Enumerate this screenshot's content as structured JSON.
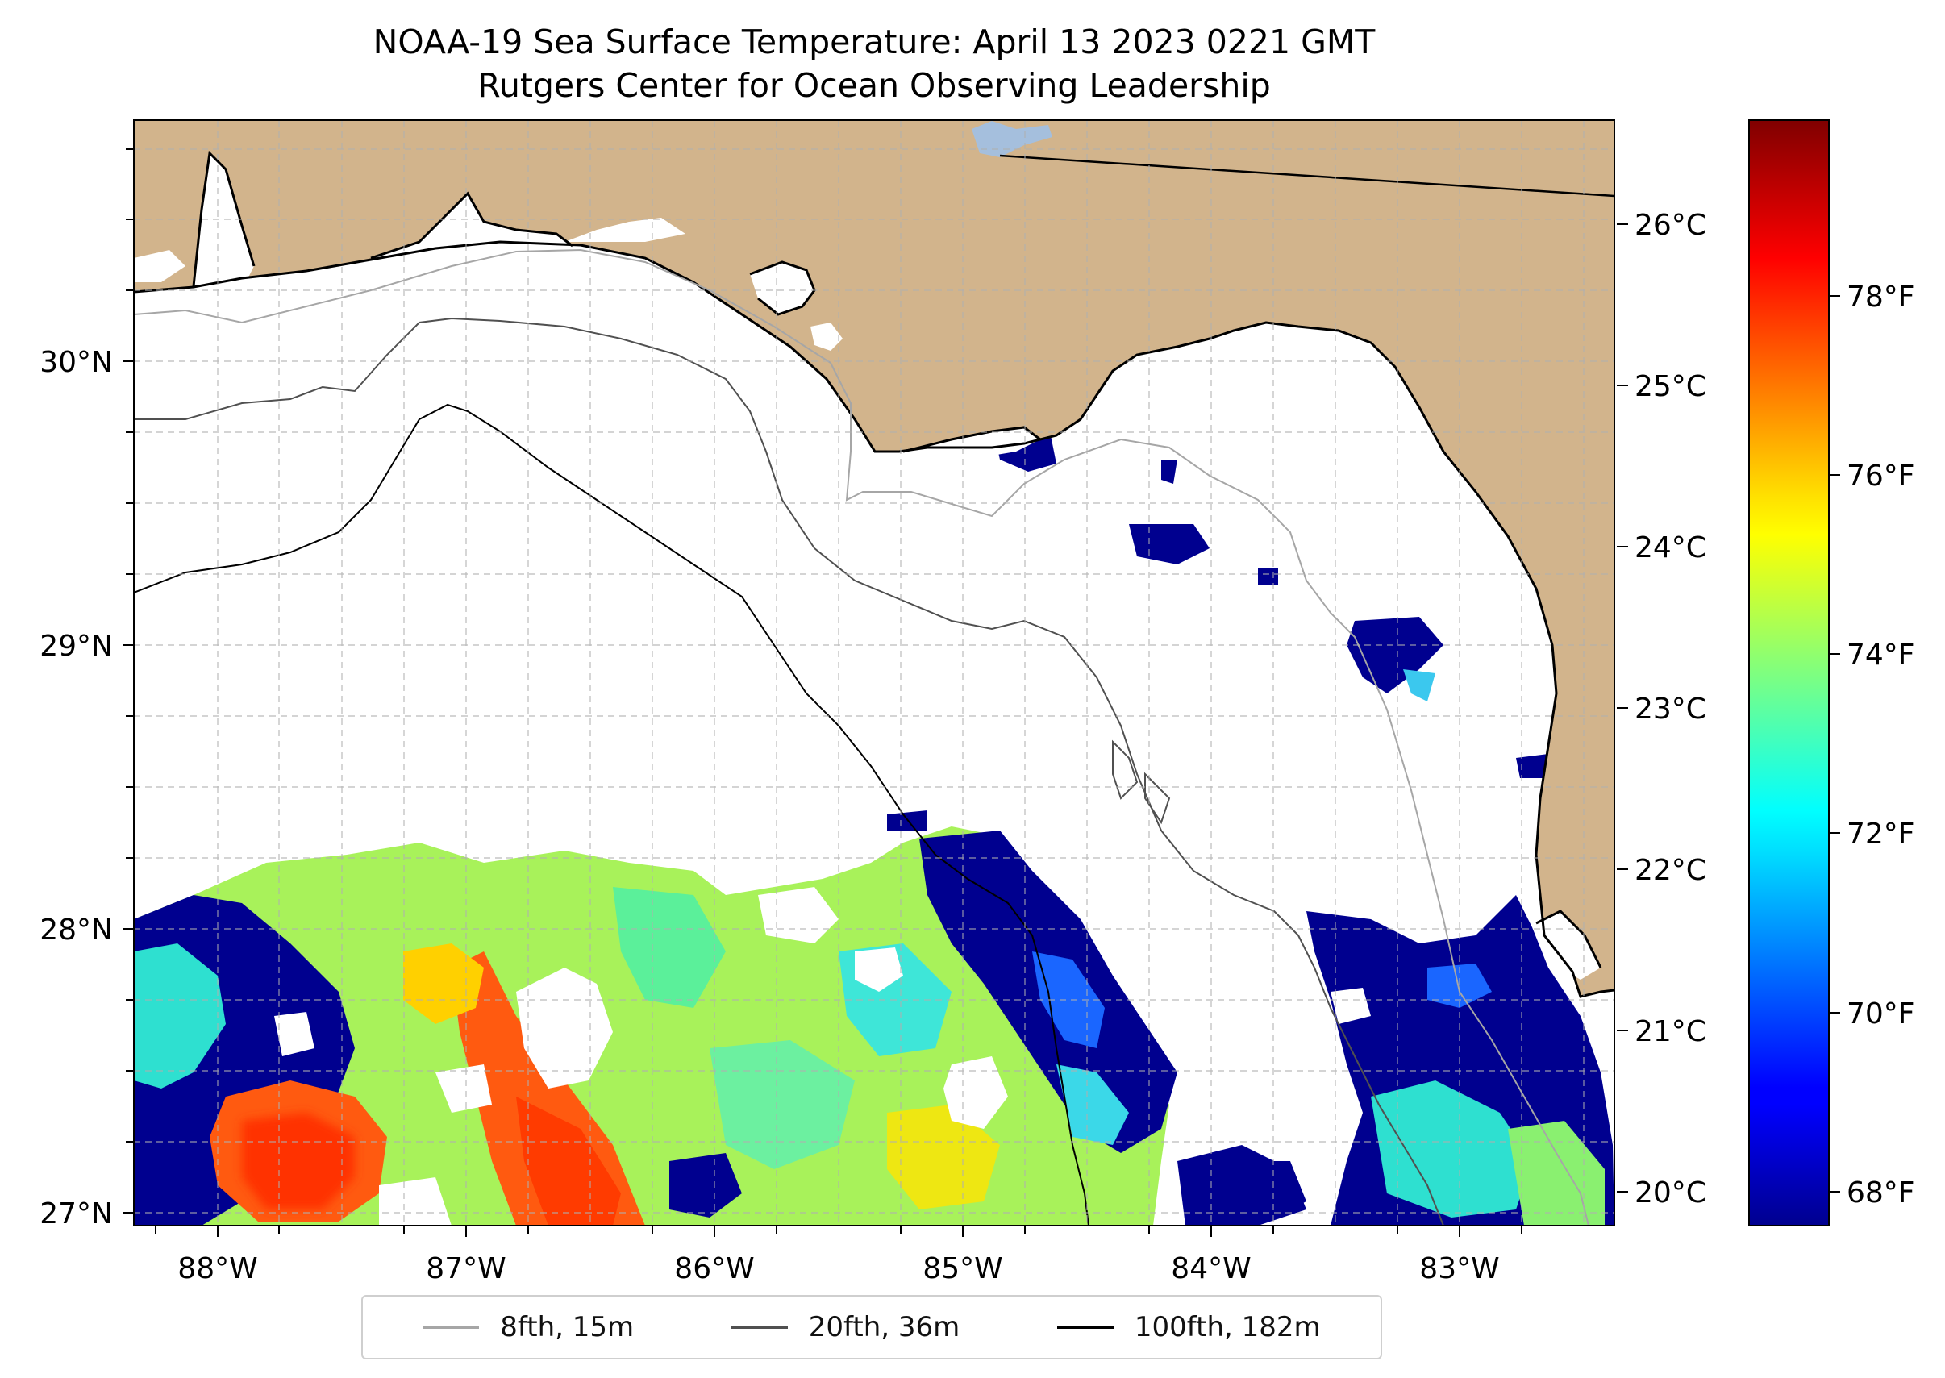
{
  "title": {
    "line1": "NOAA-19 Sea Surface Temperature: April 13 2023 0221 GMT",
    "line2": "Rutgers Center for Ocean Observing Leadership"
  },
  "map": {
    "land_color": "#d2b48c",
    "ocean_nodata_color": "#ffffff",
    "lake_color": "#a5bfdd",
    "lon_ticks": [
      "88°W",
      "87°W",
      "86°W",
      "85°W",
      "84°W",
      "83°W"
    ],
    "lat_ticks": [
      "30°N",
      "29°N",
      "28°N",
      "27°N"
    ],
    "gridlines": "dashed"
  },
  "colorbar": {
    "colormap": "jet",
    "celsius_ticks": [
      "26°C",
      "25°C",
      "24°C",
      "23°C",
      "22°C",
      "21°C",
      "20°C"
    ],
    "fahrenheit_ticks": [
      "78°F",
      "76°F",
      "74°F",
      "72°F",
      "70°F",
      "68°F"
    ],
    "range_c": [
      19.8,
      26.65
    ]
  },
  "legend": {
    "placement": "bottom-center",
    "items": [
      {
        "label": "8fth, 15m",
        "color": "#a6a6a6"
      },
      {
        "label": "20fth, 36m",
        "color": "#505050"
      },
      {
        "label": "100fth, 182m",
        "color": "#000000"
      }
    ]
  }
}
